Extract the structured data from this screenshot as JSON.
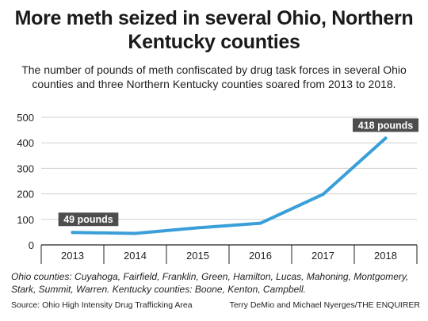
{
  "title": "More meth seized in several Ohio, Northern Kentucky counties",
  "subtitle": "The number of pounds of meth confiscated by drug task forces in several Ohio counties and three Northern Kentucky counties soared from 2013 to 2018.",
  "note": "Ohio counties: Cuyahoga, Fairfield, Franklin, Green, Hamilton, Lucas, Mahoning, Montgomery, Stark, Summit, Warren. Kentucky counties: Boone, Kenton, Campbell.",
  "source": "Source: Ohio High Intensity Drug Trafficking Area",
  "credit": "Terry DeMio and Michael Nyerges/THE ENQUIRER",
  "colors": {
    "line": "#3a9fd8",
    "label_bg": "#4d4d4d",
    "grid": "#cfcfcf"
  },
  "chart_data": {
    "type": "line",
    "categories": [
      "2013",
      "2014",
      "2015",
      "2016",
      "2017",
      "2018"
    ],
    "series": [
      {
        "values": [
          49,
          45,
          67,
          85,
          198,
          418
        ]
      }
    ],
    "ylim": [
      0,
      500
    ],
    "yticks": [
      0,
      100,
      200,
      300,
      400,
      500
    ],
    "grid": true,
    "annotations": [
      {
        "index": 0,
        "text": "49 pounds"
      },
      {
        "index": 5,
        "text": "418 pounds"
      }
    ]
  }
}
